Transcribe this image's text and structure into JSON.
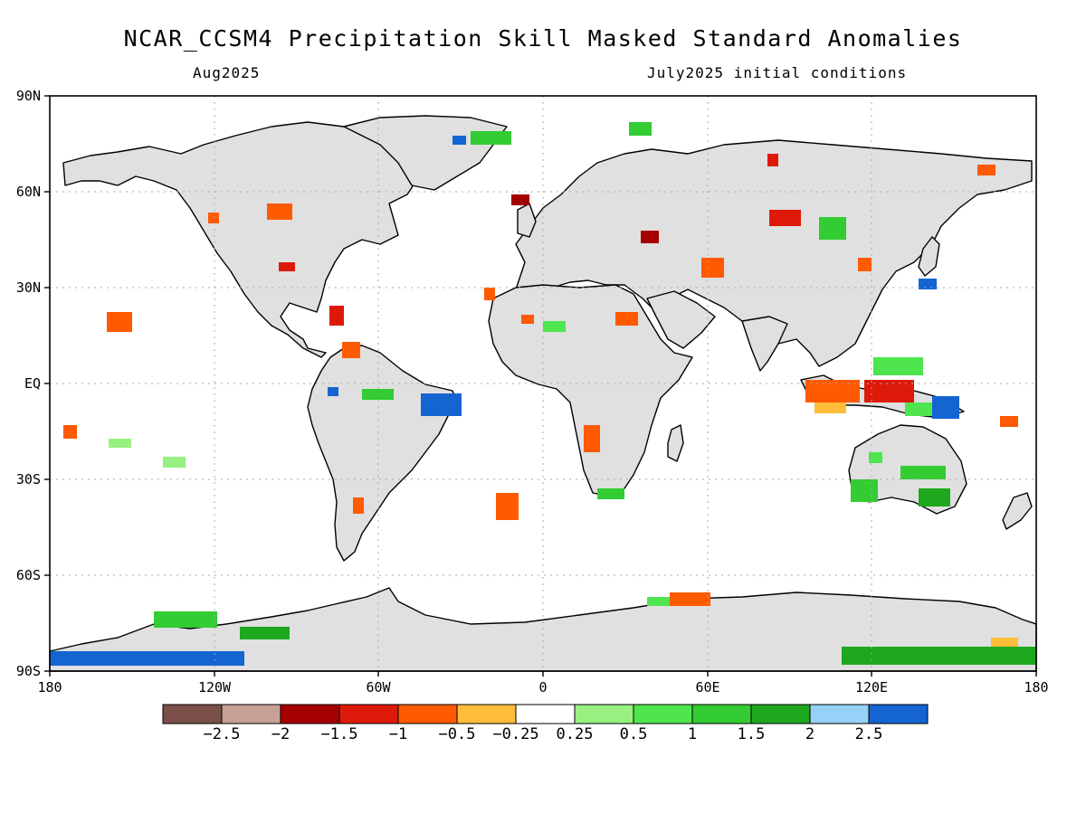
{
  "title": "NCAR_CCSM4 Precipitation Skill Masked Standard Anomalies",
  "subtitle_left": "Aug2025",
  "subtitle_right": "July2025 initial conditions",
  "lat_ticks": [
    "90N",
    "60N",
    "30N",
    "EQ",
    "30S",
    "60S",
    "90S"
  ],
  "lon_ticks": [
    "180",
    "120W",
    "60W",
    "0",
    "60E",
    "120E",
    "180"
  ],
  "colorbar": {
    "colors": [
      "#7a5049",
      "#c9a096",
      "#a50000",
      "#dd1a0a",
      "#ff5a00",
      "#ffbd3a",
      "#ffffff",
      "#97f07f",
      "#4fe54f",
      "#33cc33",
      "#1ea81e",
      "#96d1f7",
      "#1464d2"
    ],
    "labels": [
      "-2.5",
      "-2",
      "-1.5",
      "-1",
      "-0.5",
      "-0.25",
      "0.25",
      "0.5",
      "1",
      "1.5",
      "2",
      "2.5"
    ]
  },
  "colors": {
    "land": "#e0e0e0",
    "ocean": "#ffffff",
    "coastline": "#000000",
    "grid": "#aaaaaa"
  }
}
